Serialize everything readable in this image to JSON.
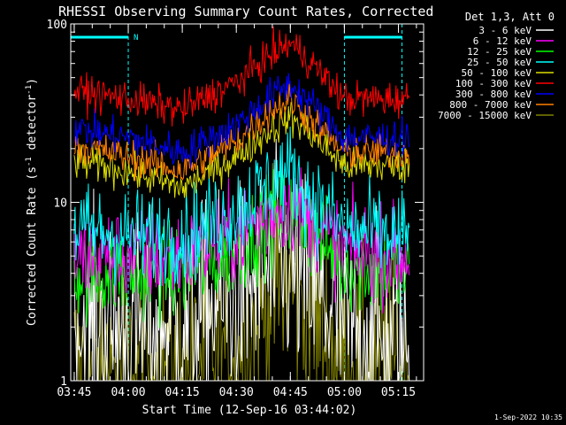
{
  "chart_data": {
    "type": "line",
    "title": "RHESSI Observing Summary Count Rates, Corrected",
    "xlabel": "Start Time (12-Sep-16 03:44:02)",
    "ylabel": "Corrected Count Rate (s⁻¹ detector⁻¹)",
    "ylabel_main": "Corrected Count Rate (s",
    "ylabel_sup1": "-1",
    "ylabel_mid": " detector",
    "ylabel_sup2": "-1",
    "ylabel_end": ")",
    "yscale": "log",
    "ylim": [
      1,
      100
    ],
    "xlim": [
      "03:44:02",
      "05:22:00"
    ],
    "x_ticks": [
      "03:45",
      "04:00",
      "04:15",
      "04:30",
      "04:45",
      "05:00",
      "05:15"
    ],
    "y_ticks": [
      "1",
      "10",
      "100"
    ],
    "legend_title": "Det 1,3, Att 0",
    "legend_position": "top-right",
    "night_marker": "N",
    "night_intervals": [
      [
        "03:44",
        "04:00"
      ],
      [
        "05:00",
        "05:16"
      ]
    ],
    "timestamp": "1-Sep-2022 10:35",
    "series": [
      {
        "name": "3 - 6 keV",
        "color": "#ffffff",
        "times": [
          "03:45",
          "04:00",
          "04:15",
          "04:30",
          "04:40",
          "04:45",
          "04:50",
          "05:00",
          "05:15"
        ],
        "values": [
          2,
          2,
          2,
          3,
          4,
          4.5,
          3.5,
          2,
          1.5
        ]
      },
      {
        "name": "6 - 12 keV",
        "color": "#ff00ff",
        "times": [
          "03:45",
          "04:00",
          "04:15",
          "04:30",
          "04:40",
          "04:45",
          "04:50",
          "05:00",
          "05:15"
        ],
        "values": [
          5,
          5,
          5,
          6.5,
          9,
          10,
          8,
          5.5,
          5
        ]
      },
      {
        "name": "12 - 25 keV",
        "color": "#00ff00",
        "times": [
          "03:45",
          "04:00",
          "04:15",
          "04:30",
          "04:40",
          "04:45",
          "04:50",
          "05:00",
          "05:15"
        ],
        "values": [
          4,
          4,
          4,
          5.5,
          8,
          9,
          7,
          4.5,
          4
        ]
      },
      {
        "name": "25 - 50 keV",
        "color": "#00ffff",
        "times": [
          "03:45",
          "04:00",
          "04:15",
          "04:30",
          "04:40",
          "04:45",
          "04:50",
          "05:00",
          "05:15"
        ],
        "values": [
          7,
          6.5,
          6.5,
          9,
          13,
          15,
          11,
          7,
          6.5
        ]
      },
      {
        "name": "50 - 100 keV",
        "color": "#dddd00",
        "times": [
          "03:45",
          "04:00",
          "04:15",
          "04:30",
          "04:40",
          "04:45",
          "04:50",
          "05:00",
          "05:15"
        ],
        "values": [
          17,
          15,
          12,
          18,
          26,
          30,
          25,
          16,
          16
        ]
      },
      {
        "name": "100 - 300 keV",
        "color": "#ff0000",
        "times": [
          "03:45",
          "04:00",
          "04:15",
          "04:30",
          "04:40",
          "04:45",
          "04:50",
          "05:00",
          "05:15"
        ],
        "values": [
          42,
          38,
          33,
          47,
          68,
          78,
          63,
          38,
          38
        ]
      },
      {
        "name": "300 - 800 keV",
        "color": "#0000ff",
        "times": [
          "03:45",
          "04:00",
          "04:15",
          "04:30",
          "04:40",
          "04:45",
          "04:50",
          "05:00",
          "05:15"
        ],
        "values": [
          26,
          23,
          19,
          27,
          40,
          46,
          37,
          23,
          23
        ]
      },
      {
        "name": "800 - 7000 keV",
        "color": "#ff8000",
        "times": [
          "03:45",
          "04:00",
          "04:15",
          "04:30",
          "04:40",
          "04:45",
          "04:50",
          "05:00",
          "05:15"
        ],
        "values": [
          21,
          18,
          15,
          22,
          33,
          38,
          30,
          19,
          19
        ]
      },
      {
        "name": "7000 - 15000 keV",
        "color": "#808000",
        "times": [
          "03:45",
          "04:00",
          "04:15",
          "04:30",
          "04:40",
          "04:45",
          "04:50",
          "05:00",
          "05:15"
        ],
        "values": [
          1.2,
          1.2,
          1.2,
          1.5,
          3,
          3.5,
          2.5,
          1.2,
          1.2
        ]
      }
    ]
  }
}
